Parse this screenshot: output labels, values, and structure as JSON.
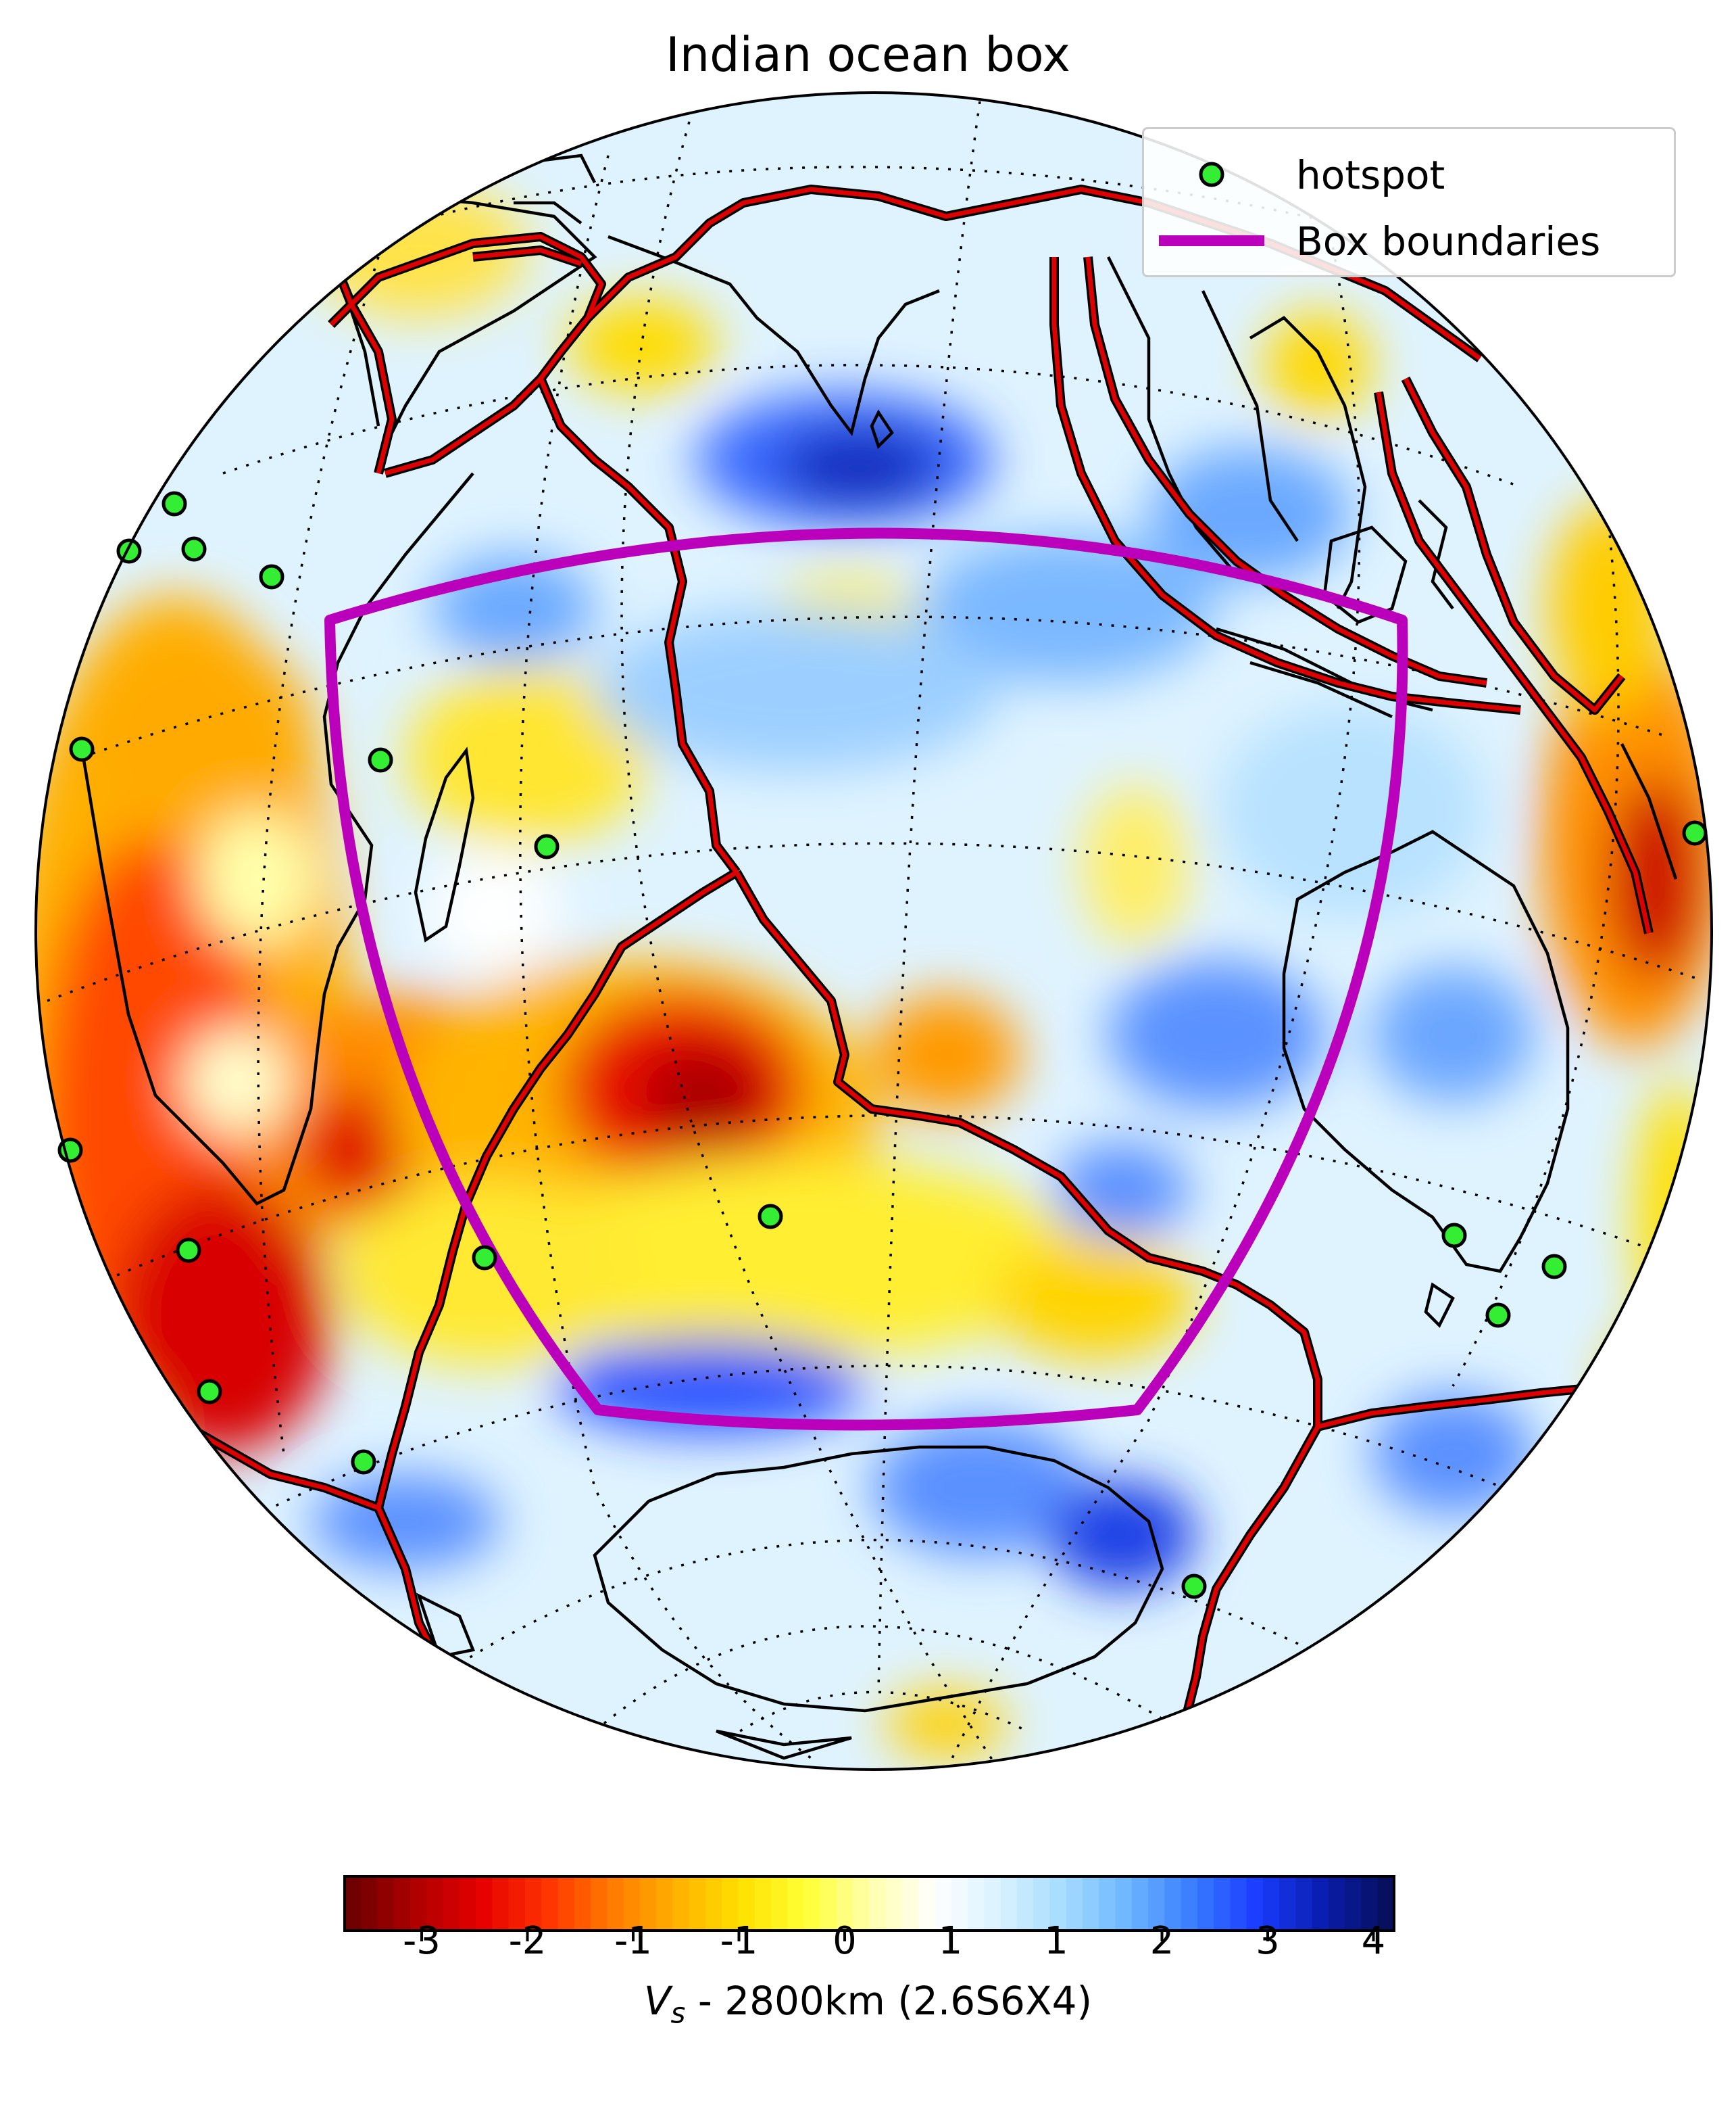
{
  "title": "Indian ocean box",
  "legend": {
    "hotspot_label": "hotspot",
    "box_label": "Box boundaries"
  },
  "colors": {
    "hotspot_fill": "#33ee33",
    "box_line": "#bb00bb",
    "plate_boundary": "#dd0000",
    "coastline": "#000000"
  },
  "colorbar": {
    "tick_labels": [
      "-3",
      "-2",
      "-1",
      "-1",
      "0",
      "1",
      "1",
      "2",
      "3",
      "4"
    ],
    "label": "V_s - 2800km (2.6S6X4)",
    "label_prefix": "V",
    "label_subscript": "s",
    "label_suffix": " - 2800km (2.6S6X4)",
    "colors_low_to_high": [
      "#6e0000",
      "#b00000",
      "#e60000",
      "#ff3300",
      "#ff7a00",
      "#ffb000",
      "#ffe000",
      "#ffff33",
      "#ffffaa",
      "#ffffff",
      "#d9f2ff",
      "#a6dcff",
      "#6cb6ff",
      "#3a7dff",
      "#1a3cff",
      "#0a1fb0",
      "#06105e"
    ]
  },
  "map": {
    "projection": "orthographic",
    "region": "Indian Ocean",
    "hotspot_count": 20
  }
}
